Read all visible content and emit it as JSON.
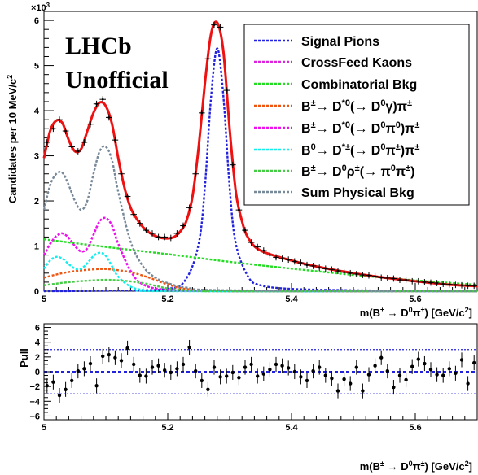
{
  "chart_data": [
    {
      "type": "line",
      "ylabel": "Candidates per 10 MeV/c",
      "ylabel_sup": "2",
      "xlabel": "m(B",
      "xlabel_parts": [
        "m(B",
        "±",
        " → D",
        "0",
        "π",
        "±",
        ") [GeV/c",
        "2",
        "]"
      ],
      "y_exponent": "×10³",
      "y_exponent_display": "×10",
      "y_exponent_sup": "3",
      "xlim": [
        5.0,
        5.7
      ],
      "ylim": [
        0,
        6.2
      ],
      "x_ticks": [
        5,
        5.2,
        5.4,
        5.6
      ],
      "x_tick_labels": [
        "5",
        "5.2",
        "5.4",
        "5.6"
      ],
      "y_ticks": [
        0,
        1,
        2,
        3,
        4,
        5,
        6
      ],
      "y_tick_labels": [
        "0",
        "1",
        "2",
        "3",
        "4",
        "5",
        "6"
      ],
      "annotation_lines": [
        "LHCb",
        "Unofficial"
      ],
      "legend": [
        {
          "label": "Signal Pions",
          "color": "#2222dd"
        },
        {
          "label": "CrossFeed Kaons",
          "color": "#dd22dd"
        },
        {
          "label": "Combinatorial Bkg",
          "color": "#22dd22"
        },
        {
          "label": "B±→ D*0(→ D0γ)π±",
          "color": "#ee5511"
        },
        {
          "label": "B±→ D*0(→ D0π0)π±",
          "color": "#ee11ee"
        },
        {
          "label": "B0→ D*±(→ D0π±)π±",
          "color": "#11eeee"
        },
        {
          "label": "B±→ D0ρ±(→ π0π±)",
          "color": "#44cc44"
        },
        {
          "label": "Sum Physical Bkg",
          "color": "#778899"
        }
      ],
      "series": [
        {
          "name": "Signal Pions",
          "color": "#2222dd",
          "x": [
            5.0,
            5.1,
            5.2,
            5.23,
            5.25,
            5.26,
            5.27,
            5.28,
            5.29,
            5.3,
            5.31,
            5.33,
            5.35,
            5.4,
            5.5,
            5.6,
            5.7
          ],
          "y": [
            0.0,
            0.01,
            0.05,
            0.28,
            1.05,
            2.3,
            4.3,
            5.38,
            4.3,
            2.3,
            1.05,
            0.32,
            0.13,
            0.05,
            0.02,
            0.01,
            0.0
          ]
        },
        {
          "name": "CrossFeed Kaons",
          "color": "#dd22dd",
          "x": [
            5.0,
            5.01,
            5.02,
            5.03,
            5.04,
            5.05,
            5.06,
            5.07,
            5.08,
            5.09,
            5.1,
            5.11,
            5.12,
            5.14,
            5.16,
            5.2,
            5.3,
            5.7
          ],
          "y": [
            0.8,
            1.05,
            1.22,
            1.28,
            1.18,
            1.0,
            0.88,
            0.95,
            1.25,
            1.55,
            1.62,
            1.45,
            1.05,
            0.45,
            0.15,
            0.03,
            0.0,
            0.0
          ]
        },
        {
          "name": "Combinatorial Bkg",
          "color": "#22dd22",
          "x": [
            5.0,
            5.1,
            5.2,
            5.3,
            5.4,
            5.5,
            5.6,
            5.7
          ],
          "y": [
            1.15,
            0.98,
            0.82,
            0.65,
            0.5,
            0.36,
            0.24,
            0.14
          ]
        },
        {
          "name": "B±→ D*0(→ D0γ)π±",
          "color": "#ee5511",
          "x": [
            5.0,
            5.03,
            5.06,
            5.09,
            5.11,
            5.14,
            5.17,
            5.2,
            5.23,
            5.3,
            5.7
          ],
          "y": [
            0.3,
            0.4,
            0.46,
            0.49,
            0.48,
            0.42,
            0.3,
            0.15,
            0.05,
            0.0,
            0.0
          ]
        },
        {
          "name": "B±→ D*0(→ D0π0)π±",
          "color": "#ee11ee",
          "x": [
            5.0,
            5.01,
            5.02,
            5.03,
            5.04,
            5.05,
            5.06,
            5.07,
            5.08,
            5.09,
            5.1,
            5.11,
            5.12,
            5.14,
            5.16,
            5.2,
            5.3,
            5.7
          ],
          "y": [
            0.8,
            1.05,
            1.22,
            1.28,
            1.18,
            1.0,
            0.88,
            0.95,
            1.25,
            1.55,
            1.62,
            1.45,
            1.05,
            0.45,
            0.15,
            0.03,
            0.0,
            0.0
          ]
        },
        {
          "name": "B0→ D*±(→ D0π±)π±",
          "color": "#11eeee",
          "x": [
            5.0,
            5.01,
            5.02,
            5.03,
            5.04,
            5.05,
            5.06,
            5.07,
            5.08,
            5.09,
            5.1,
            5.11,
            5.12,
            5.14,
            5.16,
            5.2,
            5.7
          ],
          "y": [
            0.5,
            0.68,
            0.76,
            0.72,
            0.6,
            0.5,
            0.5,
            0.62,
            0.78,
            0.85,
            0.78,
            0.55,
            0.32,
            0.1,
            0.03,
            0.0,
            0.0
          ]
        },
        {
          "name": "B±→ D0ρ±(→ π0π±)",
          "color": "#44cc44",
          "x": [
            5.0,
            5.04,
            5.08,
            5.1,
            5.12,
            5.15,
            5.18,
            5.2,
            5.23,
            5.26,
            5.3,
            5.7
          ],
          "y": [
            0.13,
            0.2,
            0.24,
            0.25,
            0.24,
            0.2,
            0.12,
            0.06,
            0.02,
            0.0,
            0.0,
            0.0
          ]
        },
        {
          "name": "Sum Physical Bkg",
          "color": "#778899",
          "x": [
            5.0,
            5.01,
            5.02,
            5.03,
            5.04,
            5.05,
            5.06,
            5.07,
            5.08,
            5.09,
            5.1,
            5.11,
            5.12,
            5.14,
            5.16,
            5.18,
            5.2,
            5.23,
            5.3,
            5.7
          ],
          "y": [
            1.8,
            2.35,
            2.6,
            2.62,
            2.35,
            2.0,
            1.8,
            2.0,
            2.6,
            3.1,
            3.2,
            2.9,
            2.2,
            1.1,
            0.55,
            0.3,
            0.18,
            0.08,
            0.02,
            0.0
          ]
        },
        {
          "name": "Total fit",
          "color": "#ee1111",
          "x": [
            5.0,
            5.01,
            5.02,
            5.03,
            5.04,
            5.05,
            5.06,
            5.07,
            5.08,
            5.09,
            5.1,
            5.11,
            5.12,
            5.13,
            5.14,
            5.15,
            5.16,
            5.17,
            5.18,
            5.19,
            5.2,
            5.21,
            5.22,
            5.23,
            5.24,
            5.25,
            5.26,
            5.27,
            5.28,
            5.29,
            5.3,
            5.31,
            5.32,
            5.33,
            5.35,
            5.4,
            5.45,
            5.5,
            5.55,
            5.6,
            5.65,
            5.7
          ],
          "y": [
            2.95,
            3.55,
            3.78,
            3.72,
            3.35,
            3.1,
            3.15,
            3.55,
            3.95,
            4.18,
            4.1,
            3.7,
            2.95,
            2.3,
            1.85,
            1.6,
            1.42,
            1.3,
            1.22,
            1.18,
            1.17,
            1.2,
            1.32,
            1.55,
            2.1,
            3.2,
            4.6,
            5.7,
            5.95,
            5.3,
            3.6,
            2.2,
            1.55,
            1.18,
            0.9,
            0.68,
            0.52,
            0.4,
            0.3,
            0.22,
            0.15,
            0.11
          ]
        },
        {
          "name": "Data",
          "color": "#000000",
          "x": [
            5.005,
            5.015,
            5.025,
            5.035,
            5.045,
            5.055,
            5.065,
            5.075,
            5.085,
            5.095,
            5.105,
            5.115,
            5.125,
            5.135,
            5.145,
            5.155,
            5.165,
            5.175,
            5.185,
            5.195,
            5.205,
            5.215,
            5.225,
            5.235,
            5.245,
            5.255,
            5.265,
            5.275,
            5.285,
            5.295,
            5.305,
            5.315,
            5.325,
            5.335,
            5.345,
            5.355,
            5.365,
            5.375,
            5.385,
            5.395,
            5.405,
            5.415,
            5.425,
            5.435,
            5.445,
            5.455,
            5.465,
            5.475,
            5.485,
            5.495,
            5.505,
            5.515,
            5.525,
            5.535,
            5.545,
            5.555,
            5.565,
            5.575,
            5.585,
            5.595,
            5.605,
            5.615,
            5.625,
            5.635,
            5.645,
            5.655,
            5.665,
            5.675,
            5.685,
            5.695
          ],
          "y": [
            3.3,
            3.6,
            3.8,
            3.55,
            3.2,
            3.1,
            3.3,
            3.7,
            4.15,
            4.25,
            3.85,
            3.35,
            2.6,
            2.1,
            1.7,
            1.5,
            1.35,
            1.28,
            1.2,
            1.2,
            1.18,
            1.28,
            1.45,
            1.85,
            2.6,
            3.95,
            5.15,
            5.9,
            5.85,
            4.45,
            2.8,
            1.8,
            1.35,
            1.08,
            0.98,
            0.9,
            0.8,
            0.75,
            0.72,
            0.7,
            0.66,
            0.63,
            0.58,
            0.56,
            0.52,
            0.5,
            0.48,
            0.45,
            0.42,
            0.4,
            0.38,
            0.36,
            0.35,
            0.33,
            0.3,
            0.29,
            0.28,
            0.25,
            0.25,
            0.22,
            0.22,
            0.2,
            0.19,
            0.18,
            0.16,
            0.15,
            0.14,
            0.13,
            0.12,
            0.12
          ],
          "yerr": 0.07
        }
      ]
    },
    {
      "type": "scatter",
      "ylabel": "Pull",
      "xlabel": "m(B",
      "xlabel_parts": [
        "m(B",
        "±",
        " → D",
        "0",
        "π",
        "±",
        ") [GeV/c",
        "2",
        "]"
      ],
      "xlim": [
        5.0,
        5.7
      ],
      "ylim": [
        -6.5,
        6.5
      ],
      "x_ticks": [
        5,
        5.2,
        5.4,
        5.6
      ],
      "x_tick_labels": [
        "5",
        "5.2",
        "5.4",
        "5.6"
      ],
      "y_ticks": [
        -6,
        -4,
        -2,
        0,
        2,
        4,
        6
      ],
      "y_tick_labels": [
        "−6",
        "−4",
        "−2",
        "0",
        "2",
        "4",
        "6"
      ],
      "reference_lines": [
        -3,
        0,
        3
      ],
      "series": [
        {
          "name": "Pull",
          "color": "#000000",
          "x": [
            5.005,
            5.015,
            5.025,
            5.035,
            5.045,
            5.055,
            5.065,
            5.075,
            5.085,
            5.095,
            5.105,
            5.115,
            5.125,
            5.135,
            5.145,
            5.155,
            5.165,
            5.175,
            5.185,
            5.195,
            5.205,
            5.215,
            5.225,
            5.235,
            5.245,
            5.255,
            5.265,
            5.275,
            5.285,
            5.295,
            5.305,
            5.315,
            5.325,
            5.335,
            5.345,
            5.355,
            5.365,
            5.375,
            5.385,
            5.395,
            5.405,
            5.415,
            5.425,
            5.435,
            5.445,
            5.455,
            5.465,
            5.475,
            5.485,
            5.495,
            5.505,
            5.515,
            5.525,
            5.535,
            5.545,
            5.555,
            5.565,
            5.575,
            5.585,
            5.595,
            5.605,
            5.615,
            5.625,
            5.635,
            5.645,
            5.655,
            5.665,
            5.675,
            5.685,
            5.695
          ],
          "y": [
            -1.9,
            -1.4,
            -3.2,
            -2.4,
            -1.2,
            0.1,
            0.4,
            1.1,
            -1.9,
            2.1,
            2.3,
            1.9,
            1.5,
            3.2,
            1.0,
            -0.5,
            -0.6,
            0.6,
            0.8,
            0.2,
            -0.1,
            0.4,
            1.0,
            3.3,
            0.1,
            -1.2,
            -2.4,
            0.6,
            -0.7,
            -0.6,
            -0.1,
            -0.8,
            0.6,
            1.0,
            -0.6,
            -0.3,
            0.3,
            1.0,
            0.8,
            0.5,
            0.0,
            -0.7,
            -1.2,
            0.1,
            0.6,
            -0.5,
            -0.9,
            -2.6,
            -1.0,
            -1.6,
            0.6,
            -2.6,
            -0.4,
            0.8,
            1.9,
            0.1,
            -2.1,
            -0.5,
            -1.1,
            0.7,
            1.7,
            1.1,
            0.3,
            -0.4,
            -0.5,
            0.4,
            -0.2,
            1.6,
            -1.6,
            1.2
          ]
        }
      ]
    }
  ]
}
